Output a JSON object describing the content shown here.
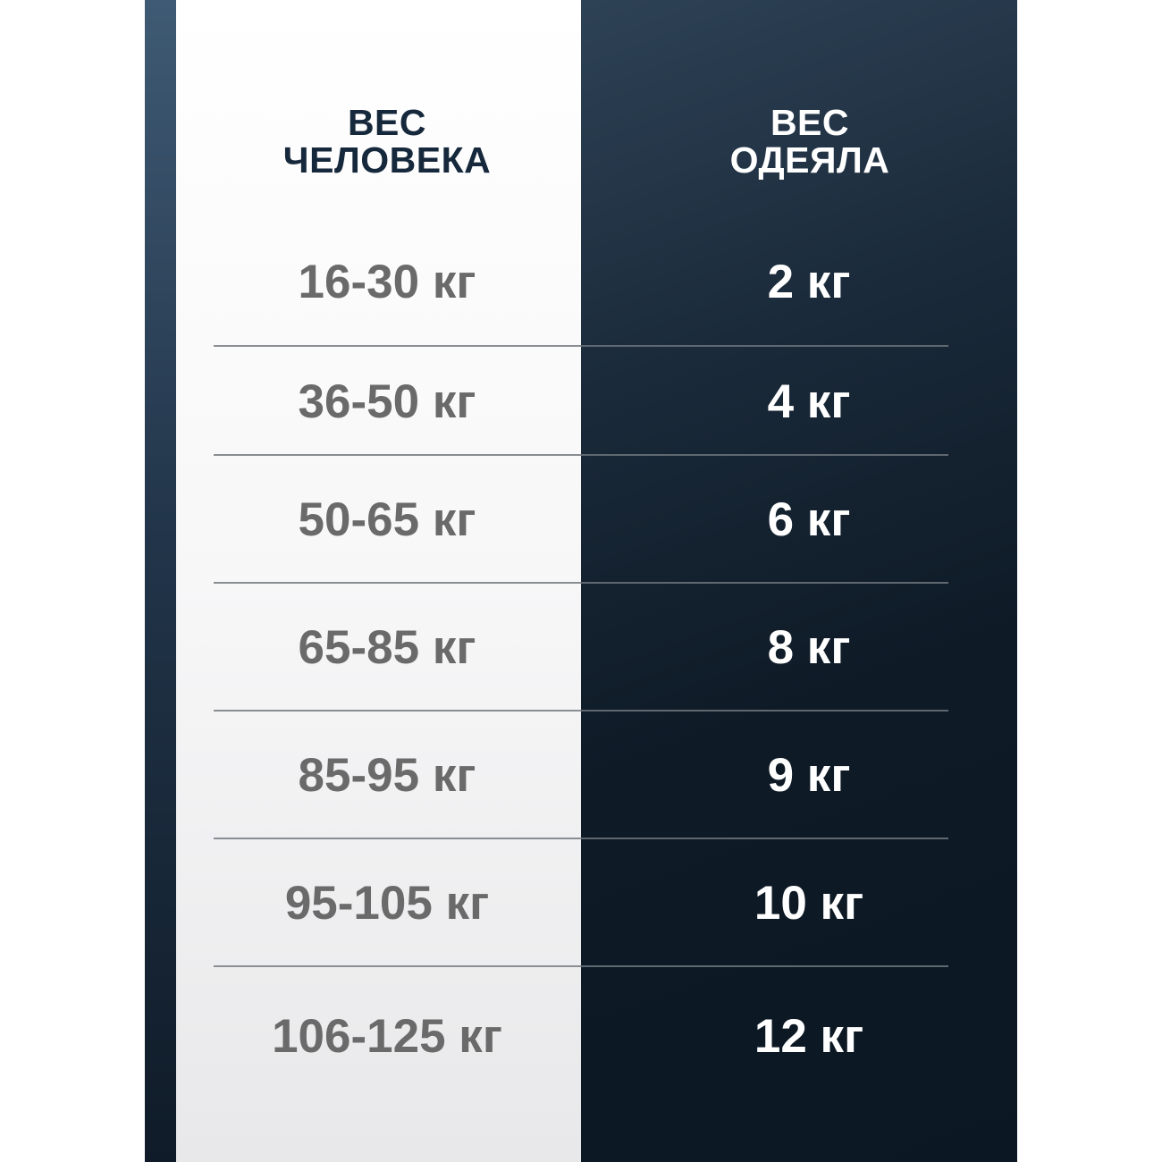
{
  "header": {
    "left": [
      "ВЕС",
      "ЧЕЛОВЕКА"
    ],
    "right": [
      "ВЕС",
      "ОДЕЯЛА"
    ]
  },
  "rows": [
    {
      "person": "16-30 кг",
      "blanket": "2 кг"
    },
    {
      "person": "36-50 кг",
      "blanket": "4 кг"
    },
    {
      "person": "50-65 кг",
      "blanket": "6 кг"
    },
    {
      "person": "65-85 кг",
      "blanket": "8 кг"
    },
    {
      "person": "85-95 кг",
      "blanket": "9 кг"
    },
    {
      "person": "95-105 кг",
      "blanket": "10 кг"
    },
    {
      "person": "106-125 кг",
      "blanket": "12 кг"
    }
  ],
  "colors": {
    "dark": "#0e1a26",
    "header_text": "#16283b",
    "value_text": "#6a6a6a"
  }
}
